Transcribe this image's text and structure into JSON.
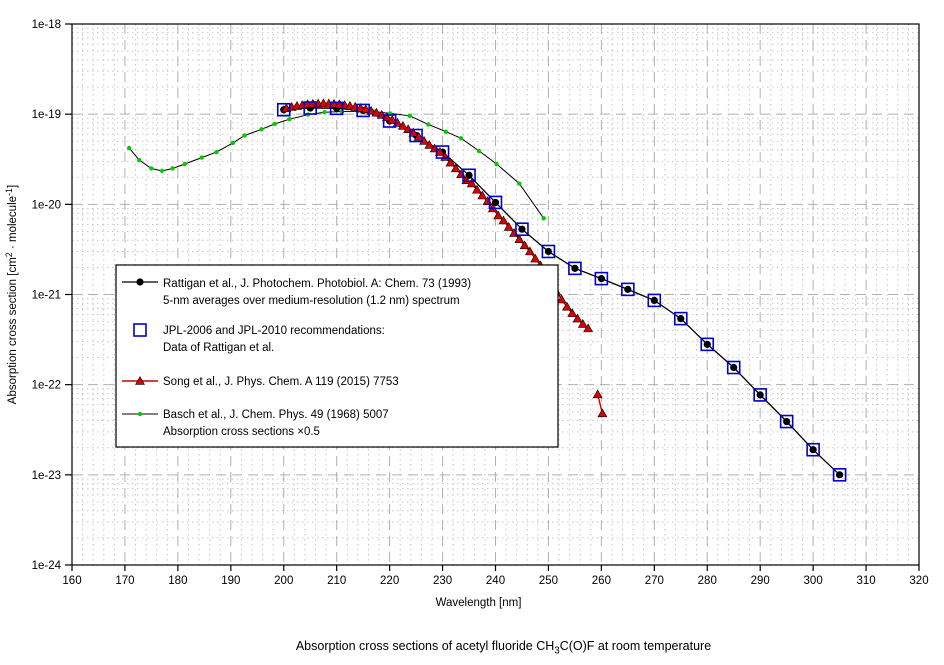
{
  "title_segments": [
    {
      "t": "Absorption cross sections of acetyl fluoride CH"
    },
    {
      "t": "3",
      "sub": true
    },
    {
      "t": "C(O)F at room temperature"
    }
  ],
  "chart_data": {
    "type": "line",
    "x_axis": {
      "label": "Wavelength [nm]",
      "min": 160,
      "max": 320,
      "ticks": [
        160,
        170,
        180,
        190,
        200,
        210,
        220,
        230,
        240,
        250,
        260,
        270,
        280,
        290,
        300,
        310,
        320
      ],
      "minor_step_nm": 2,
      "scale": "linear"
    },
    "y_axis": {
      "label_segments": [
        {
          "t": "Absorption cross section [cm"
        },
        {
          "t": "2",
          "sup": true
        },
        {
          "t": " · molecule"
        },
        {
          "t": "-1",
          "sup": true
        },
        {
          "t": "]"
        }
      ],
      "scale": "log",
      "min_exp": -24,
      "max_exp": -18,
      "tick_labels": [
        "1e-18",
        "1e-19",
        "1e-20",
        "1e-21",
        "1e-22",
        "1e-23",
        "1e-24"
      ],
      "tick_exps": [
        -18,
        -19,
        -20,
        -21,
        -22,
        -23,
        -24
      ]
    },
    "grid": {
      "major_color": "#b0b0b0",
      "minor_color": "#c6c6c6",
      "on": true
    },
    "series": [
      {
        "id": "basch",
        "name": "Basch et al., J. Chem. Phys. 49 (1968) 5007 / Absorption cross sections x0.5",
        "line_color": "#000000",
        "marker": "green-dot",
        "marker_color": "#00cc00",
        "points": [
          [
            170.8,
            4.2e-20
          ],
          [
            172.7,
            3.1e-20
          ],
          [
            175.0,
            2.5e-20
          ],
          [
            177.0,
            2.35e-20
          ],
          [
            179.0,
            2.5e-20
          ],
          [
            181.3,
            2.8e-20
          ],
          [
            184.5,
            3.3e-20
          ],
          [
            187.3,
            3.8e-20
          ],
          [
            190.4,
            4.8e-20
          ],
          [
            192.6,
            5.8e-20
          ],
          [
            195.8,
            6.8e-20
          ],
          [
            198.3,
            7.8e-20
          ],
          [
            201.1,
            8.8e-20
          ],
          [
            204.6,
            9.9e-20
          ],
          [
            207.7,
            1.05e-19
          ],
          [
            211.0,
            1.07e-19
          ],
          [
            214.0,
            1.08e-19
          ],
          [
            217.0,
            1.07e-19
          ],
          [
            220.1,
            1.02e-19
          ],
          [
            223.8,
            9.6e-20
          ],
          [
            227.3,
            7.7e-20
          ],
          [
            230.6,
            6.4e-20
          ],
          [
            233.5,
            5.4e-20
          ],
          [
            236.9,
            3.9e-20
          ],
          [
            240.2,
            2.8e-20
          ],
          [
            244.5,
            1.7e-20
          ],
          [
            249.1,
            7e-21
          ]
        ]
      },
      {
        "id": "rattigan",
        "name": "Rattigan et al., J. Photochem. Photobiol. A: Chem. 73 (1993)",
        "line_color": "#000000",
        "marker": "black-circle",
        "marker_color": "#000000",
        "points": [
          [
            200,
            1.12e-19
          ],
          [
            205,
            1.17e-19
          ],
          [
            210,
            1.16e-19
          ],
          [
            215,
            1.1e-19
          ],
          [
            220,
            8.4e-20
          ],
          [
            225,
            5.8e-20
          ],
          [
            230,
            3.8e-20
          ],
          [
            235,
            2.1e-20
          ],
          [
            240,
            1.05e-20
          ],
          [
            245,
            5.3e-21
          ],
          [
            250,
            3e-21
          ],
          [
            255,
            1.95e-21
          ],
          [
            260,
            1.5e-21
          ],
          [
            265,
            1.14e-21
          ],
          [
            270,
            8.6e-22
          ],
          [
            275,
            5.4e-22
          ],
          [
            280,
            2.8e-22
          ],
          [
            285,
            1.55e-22
          ],
          [
            290,
            7.7e-23
          ],
          [
            295,
            3.9e-23
          ],
          [
            300,
            1.9e-23
          ],
          [
            305,
            1e-23
          ]
        ]
      },
      {
        "id": "jpl",
        "name": "JPL-2006 and JPL-2010 recommendations: Data of Rattigan et al.",
        "line_color": "none",
        "marker": "blue-square",
        "marker_color": "#0000cc",
        "points": [
          [
            200,
            1.12e-19
          ],
          [
            205,
            1.17e-19
          ],
          [
            210,
            1.16e-19
          ],
          [
            215,
            1.1e-19
          ],
          [
            220,
            8.4e-20
          ],
          [
            225,
            5.8e-20
          ],
          [
            230,
            3.8e-20
          ],
          [
            235,
            2.1e-20
          ],
          [
            240,
            1.05e-20
          ],
          [
            245,
            5.3e-21
          ],
          [
            250,
            3e-21
          ],
          [
            255,
            1.95e-21
          ],
          [
            260,
            1.5e-21
          ],
          [
            265,
            1.14e-21
          ],
          [
            270,
            8.6e-22
          ],
          [
            275,
            5.4e-22
          ],
          [
            280,
            2.8e-22
          ],
          [
            285,
            1.55e-22
          ],
          [
            290,
            7.7e-23
          ],
          [
            295,
            3.9e-23
          ],
          [
            300,
            1.9e-23
          ],
          [
            305,
            1e-23
          ]
        ]
      },
      {
        "id": "song",
        "name": "Song et al., J. Phys. Chem. A 119 (2015) 7753",
        "line_color": "#cc0000",
        "marker": "red-triangle",
        "marker_color": "#dd0000",
        "points": [
          [
            200.5,
            1.16e-19
          ],
          [
            201.5,
            1.2e-19
          ],
          [
            202.5,
            1.23e-19
          ],
          [
            203.5,
            1.26e-19
          ],
          [
            204.5,
            1.285e-19
          ],
          [
            205.5,
            1.3e-19
          ],
          [
            206.5,
            1.31e-19
          ],
          [
            207.5,
            1.315e-19
          ],
          [
            208.5,
            1.31e-19
          ],
          [
            209.5,
            1.3e-19
          ],
          [
            210.5,
            1.285e-19
          ],
          [
            211.5,
            1.26e-19
          ],
          [
            212.5,
            1.235e-19
          ],
          [
            213.5,
            1.205e-19
          ],
          [
            214.5,
            1.17e-19
          ],
          [
            215.5,
            1.13e-19
          ],
          [
            216.5,
            1.085e-19
          ],
          [
            217.5,
            1.035e-19
          ],
          [
            218.5,
            9.8e-20
          ],
          [
            219.5,
            9.2e-20
          ],
          [
            220.5,
            8.6e-20
          ],
          [
            221.5,
            8e-20
          ],
          [
            222.5,
            7.4e-20
          ],
          [
            223.5,
            6.8e-20
          ],
          [
            224.5,
            6.2e-20
          ],
          [
            225.5,
            5.6e-20
          ],
          [
            226.5,
            5.05e-20
          ],
          [
            227.5,
            4.55e-20
          ],
          [
            228.5,
            4.15e-20
          ],
          [
            229.5,
            3.8e-20
          ],
          [
            230.5,
            3.35e-20
          ],
          [
            231.5,
            2.9e-20
          ],
          [
            232.5,
            2.5e-20
          ],
          [
            233.5,
            2.15e-20
          ],
          [
            234.5,
            1.85e-20
          ],
          [
            235.5,
            1.7e-20
          ],
          [
            236.5,
            1.45e-20
          ],
          [
            237.5,
            1.25e-20
          ],
          [
            238.5,
            1.08e-20
          ],
          [
            239.5,
            9e-21
          ],
          [
            240.5,
            7.5e-21
          ],
          [
            241.5,
            6.6e-21
          ],
          [
            242.5,
            5.6e-21
          ],
          [
            243.5,
            4.8e-21
          ],
          [
            244.5,
            4.1e-21
          ],
          [
            245.5,
            3.5e-21
          ],
          [
            246.5,
            3e-21
          ],
          [
            247.5,
            2.5e-21
          ],
          [
            248.5,
            2.1e-21
          ],
          [
            249.5,
            1.7e-21
          ],
          [
            250.5,
            1.35e-21
          ],
          [
            251.5,
            1.07e-21
          ],
          [
            252.5,
            8.8e-22
          ],
          [
            253.5,
            7.3e-22
          ],
          [
            254.5,
            6.2e-22
          ],
          [
            255.5,
            5.4e-22
          ],
          [
            256.5,
            4.7e-22
          ],
          [
            257.5,
            4.2e-22
          ]
        ],
        "isolated_points": [
          [
            259.3,
            7.8e-23
          ],
          [
            260.2,
            4.8e-23
          ]
        ]
      }
    ],
    "legend": {
      "position": "inside-left",
      "entries": [
        {
          "marker": "circle-line",
          "color": "#000000",
          "lines": [
            "Rattigan et al., J. Photochem. Photobiol. A: Chem. 73 (1993)",
            "5-nm averages over medium-resolution (1.2 nm) spectrum"
          ]
        },
        {
          "marker": "square",
          "color": "#0000cc",
          "lines": [
            "JPL-2006 and JPL-2010 recommendations:",
            "Data of Rattigan et al."
          ]
        },
        {
          "marker": "triangle-line",
          "color": "#cc0000",
          "lines": [
            "Song et al., J. Phys. Chem. A 119 (2015) 7753"
          ]
        },
        {
          "marker": "dot-line",
          "color": "#00cc00",
          "lines": [
            "Basch et al., J. Chem. Phys. 49 (1968) 5007",
            "Absorption cross sections ×0.5"
          ]
        }
      ]
    }
  }
}
